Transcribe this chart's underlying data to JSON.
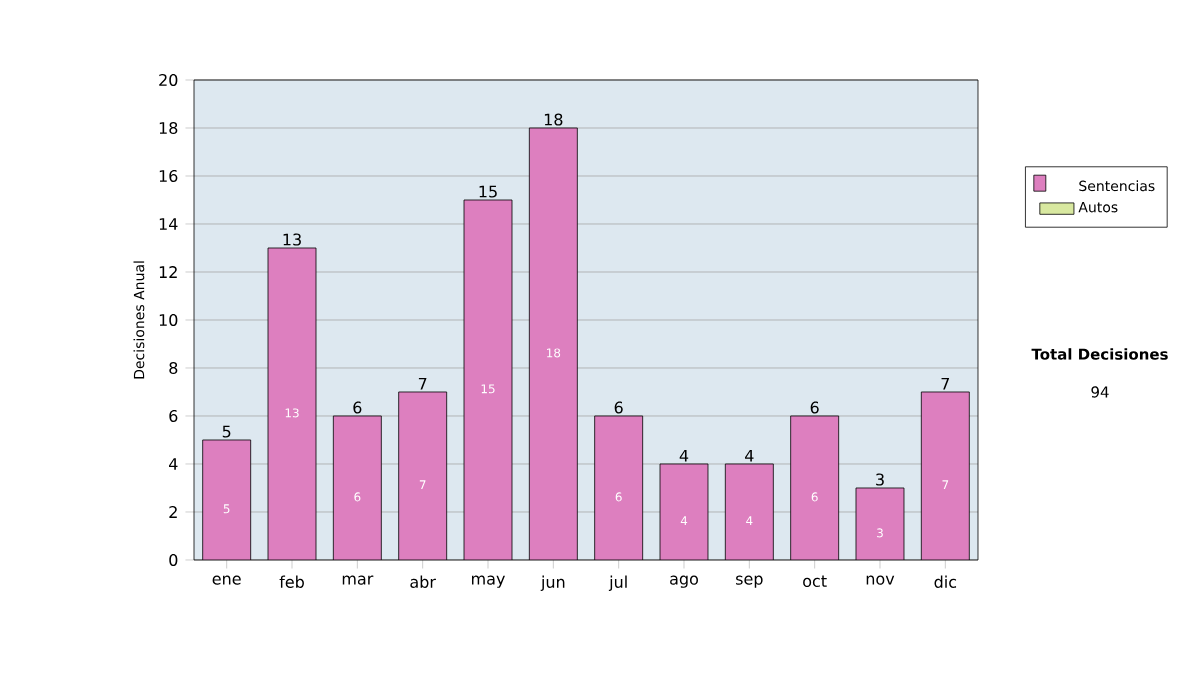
{
  "chart_data": {
    "type": "bar",
    "stacked": true,
    "ylabel": "Decisiones Anual",
    "categories": [
      "ene",
      "feb",
      "mar",
      "abr",
      "may",
      "jun",
      "jul",
      "ago",
      "sep",
      "oct",
      "nov",
      "dic"
    ],
    "series": [
      {
        "name": "Sentencias",
        "color": "#dd7fbf",
        "values": [
          5,
          13,
          6,
          7,
          15,
          18,
          6,
          4,
          4,
          6,
          3,
          7
        ]
      },
      {
        "name": "Autos",
        "color": "#d8e8a0",
        "values": [
          null,
          null,
          null,
          null,
          null,
          null,
          null,
          null,
          null,
          null,
          null,
          null
        ]
      }
    ],
    "totals": [
      "5",
      "13",
      "6",
      "7",
      "15",
      "18",
      "6",
      "4",
      "4",
      "6",
      "3",
      "7"
    ],
    "data_labels": true,
    "ylim": [
      0,
      20
    ],
    "yticks": [
      0,
      2,
      4,
      6,
      8,
      10,
      12,
      14,
      16,
      18,
      20
    ],
    "grid": "y",
    "legend": "right",
    "annotations": [
      "Total Decisiones",
      "94"
    ]
  }
}
